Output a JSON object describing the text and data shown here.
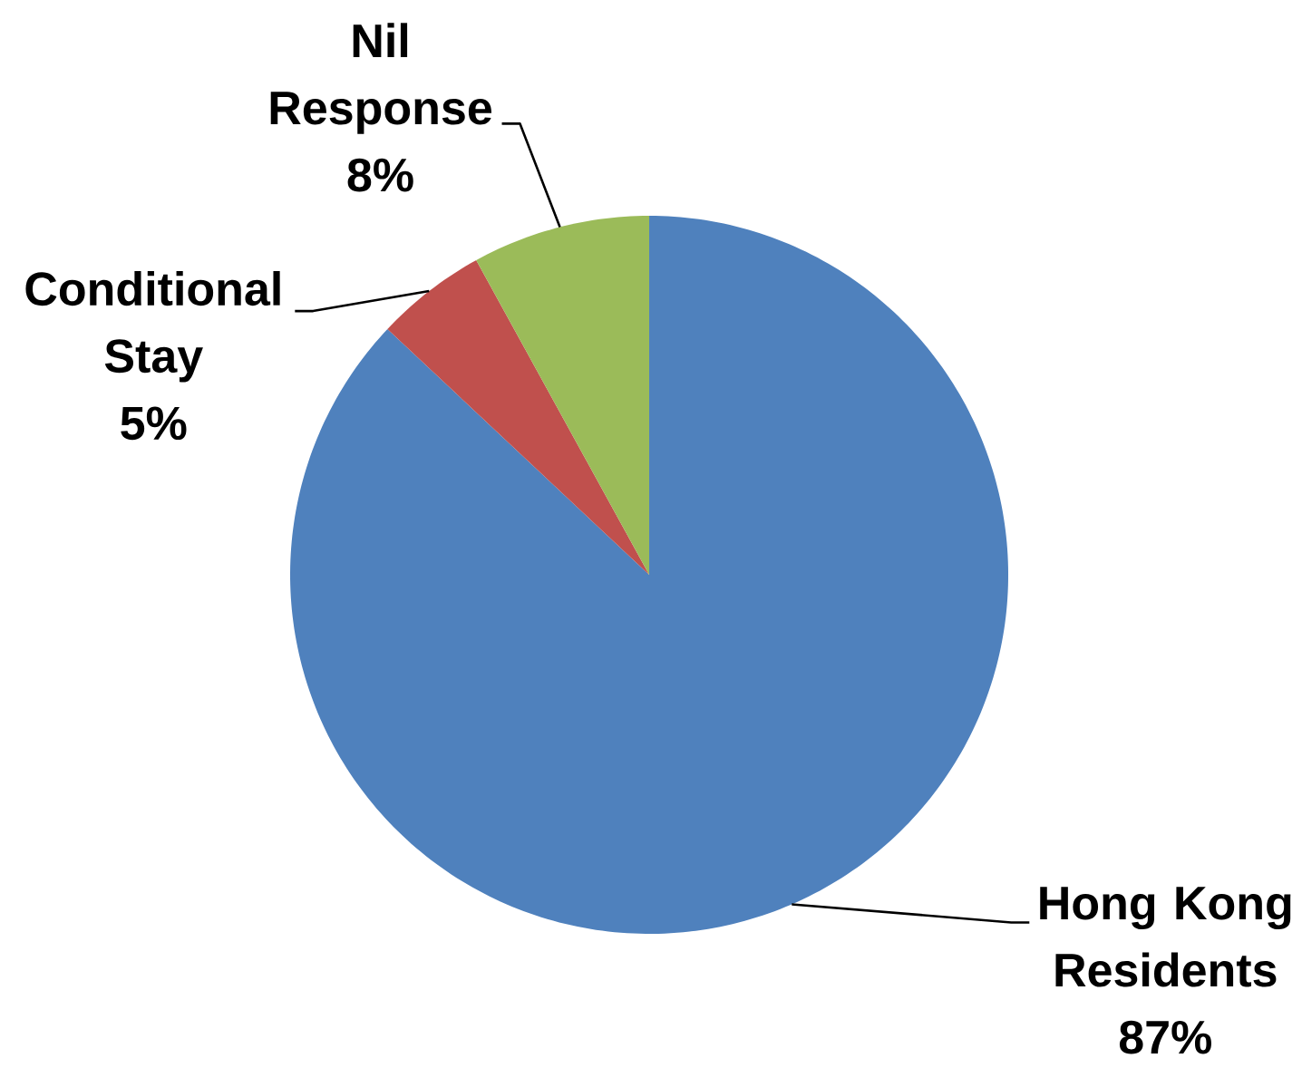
{
  "chart_data": {
    "type": "pie",
    "categories": [
      "Hong Kong Residents",
      "Conditional Stay",
      "Nil Response"
    ],
    "values": [
      87,
      5,
      8
    ],
    "colors": [
      "#4f81bd",
      "#c0504d",
      "#9bbb59"
    ],
    "value_labels": [
      "87%",
      "5%",
      "8%"
    ]
  }
}
